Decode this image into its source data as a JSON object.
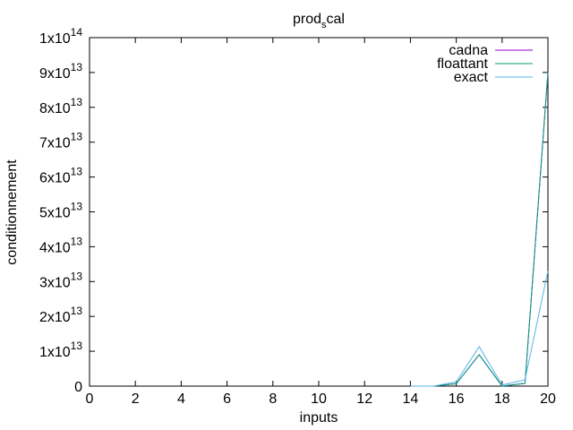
{
  "chart_data": {
    "type": "line",
    "title_main": "prod",
    "title_sub": "s",
    "title_end": "cal",
    "xlabel": "inputs",
    "ylabel": "conditionnement",
    "xlim": [
      0,
      20
    ],
    "ylim": [
      0,
      100000000000000
    ],
    "x_ticks": [
      0,
      2,
      4,
      6,
      8,
      10,
      12,
      14,
      16,
      18,
      20
    ],
    "y_ticks": [
      {
        "value": 0,
        "mant": "0",
        "exp": ""
      },
      {
        "value": 10000000000000,
        "mant": "1x10",
        "exp": "13"
      },
      {
        "value": 20000000000000,
        "mant": "2x10",
        "exp": "13"
      },
      {
        "value": 30000000000000,
        "mant": "3x10",
        "exp": "13"
      },
      {
        "value": 40000000000000,
        "mant": "4x10",
        "exp": "13"
      },
      {
        "value": 50000000000000,
        "mant": "5x10",
        "exp": "13"
      },
      {
        "value": 60000000000000,
        "mant": "6x10",
        "exp": "13"
      },
      {
        "value": 70000000000000,
        "mant": "7x10",
        "exp": "13"
      },
      {
        "value": 80000000000000,
        "mant": "8x10",
        "exp": "13"
      },
      {
        "value": 90000000000000,
        "mant": "9x10",
        "exp": "13"
      },
      {
        "value": 100000000000000,
        "mant": "1x10",
        "exp": "14"
      }
    ],
    "grid": false,
    "legend_position": "top-right",
    "series": [
      {
        "name": "cadna",
        "color": "#9400d3",
        "x": [
          14,
          15,
          16,
          17,
          18,
          19,
          20
        ],
        "y": [
          0,
          0,
          700000000000,
          9000000000000,
          0,
          800000000000,
          90000000000000
        ]
      },
      {
        "name": "floattant",
        "color": "#009e73",
        "x": [
          14,
          15,
          16,
          17,
          18,
          19,
          20
        ],
        "y": [
          0,
          0,
          700000000000,
          9000000000000,
          0,
          800000000000,
          90000000000000
        ]
      },
      {
        "name": "exact",
        "color": "#56b4e9",
        "x": [
          14,
          15,
          16,
          17,
          18,
          19,
          20
        ],
        "y": [
          0,
          0,
          1200000000000,
          11300000000000,
          300000000000,
          1800000000000,
          33000000000000
        ]
      }
    ]
  }
}
